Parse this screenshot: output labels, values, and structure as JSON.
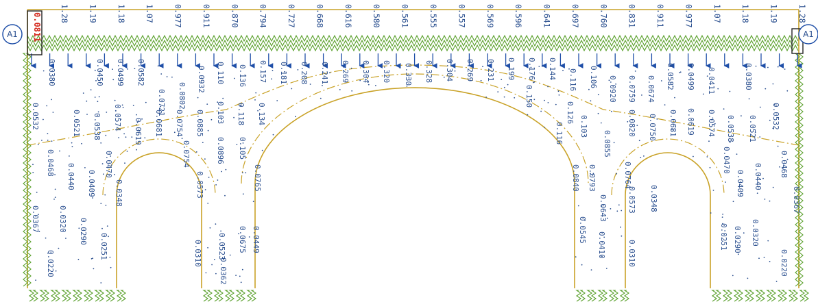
{
  "colors": {
    "background": "#ffffff",
    "outline": "#c9a227",
    "springs": "#5aa02c",
    "arrows": "#1f4fa8",
    "labels": "#2a4f8f",
    "highlight": "#d42a1e",
    "marker": "#1f4fa8"
  },
  "markers": {
    "left": "A1",
    "right": "A1"
  },
  "highlight_value": "0.0811",
  "top_values": [
    "1.28",
    "1.19",
    "1.18",
    "1.07",
    "0.977",
    "0.911",
    "0.831",
    "0.760",
    "0.697",
    "0.641",
    "0.596",
    "0.569",
    "0.557",
    "0.555",
    "0.561",
    "0.580",
    "0.616",
    "0.668",
    "0.727",
    "0.794",
    "0.870",
    "0.911",
    "0.977",
    "1.07",
    "1.18",
    "1.19",
    "1.28"
  ],
  "values": {
    "left": [
      "0.0380",
      "0.0450",
      "0.0499",
      "0.0582",
      "0.0721",
      "0.0802",
      "0.0932",
      "0.110",
      "0.136",
      "0.157",
      "0.181",
      "0.208",
      "0.241",
      "0.269",
      "0.304",
      "0.320",
      "0.330",
      "0.0532",
      "0.0521",
      "0.0538",
      "0.0574",
      "0.0619",
      "0.0681",
      "0.0754",
      "0.0885",
      "0.103",
      "0.118",
      "0.134",
      "0.0468",
      "0.0440",
      "0.0409",
      "0.0470",
      "0.0348",
      "0.0573",
      "0.0754",
      "0.0896",
      "0.105",
      "0.0765",
      "0.0367",
      "0.0320",
      "0.0290",
      "0.0251",
      "0.0310",
      "0.0523",
      "0.0675",
      "0.0449",
      "0.0362",
      "0.0220"
    ],
    "right": [
      "0.328",
      "0.304",
      "0.269",
      "0.231",
      "0.199",
      "0.176",
      "0.144",
      "0.150",
      "0.116",
      "0.106",
      "0.0920",
      "0.0759",
      "0.0674",
      "0.0582",
      "0.0499",
      "0.0411",
      "0.0380",
      "0.126",
      "0.116",
      "0.103",
      "0.0855",
      "0.0820",
      "0.0750",
      "0.0681",
      "0.0619",
      "0.0574",
      "0.0538",
      "0.0521",
      "0.0532",
      "0.0840",
      "0.0793",
      "0.0764",
      "0.0643",
      "0.0573",
      "0.0470",
      "0.0409",
      "0.0440",
      "0.0468",
      "0.0545",
      "0.0410",
      "0.0310",
      "0.0348",
      "0.0251",
      "0.0290",
      "0.0320",
      "0.0367",
      "0.0220"
    ]
  }
}
